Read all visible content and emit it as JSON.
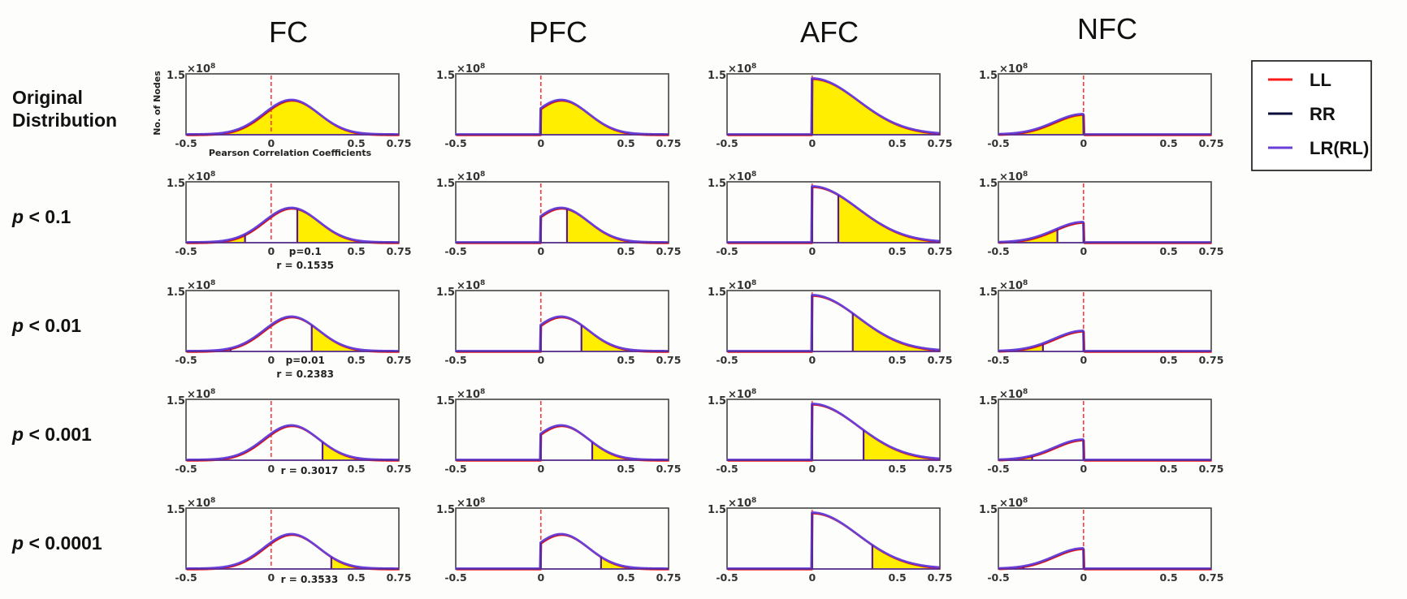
{
  "chart_data": {
    "type": "area",
    "title": "",
    "columns": [
      "FC",
      "PFC",
      "AFC",
      "NFC"
    ],
    "rows": [
      {
        "label_italic": "",
        "label": "Original\nDistribution",
        "p": null
      },
      {
        "label_italic": "p",
        "label": " < 0.1",
        "p": 0.1
      },
      {
        "label_italic": "p",
        "label": " < 0.01",
        "p": 0.01
      },
      {
        "label_italic": "p",
        "label": " < 0.001",
        "p": 0.001
      },
      {
        "label_italic": "p",
        "label": " < 0.0001",
        "p": 0.0001
      }
    ],
    "xlabel": "Pearson Correlation Coefficients",
    "ylabel": "No. of Nodes",
    "xlim": [
      -0.5,
      0.75
    ],
    "ylim": [
      0,
      150000000.0
    ],
    "xticks": [
      "-0.5",
      "0",
      "0.5",
      "0.75"
    ],
    "ytick_label": "1.5",
    "y_multiplier": "×10",
    "y_multiplier_exp": "8",
    "zero_line": {
      "x": 0,
      "style": "dashed",
      "color": "#ff3030"
    },
    "distribution": {
      "family": "gaussian",
      "mean": 0.12,
      "sd": 0.16,
      "peak": 85000000.0
    },
    "afc_distribution": {
      "peak_at_zero": 138000000.0
    },
    "nfc_distribution": {
      "value_at_zero": 50000000.0
    },
    "thresholds": [
      {
        "p": 0.1,
        "r": 0.1535,
        "annotation_p": "p=0.1",
        "annotation_r": "r = 0.1535",
        "neg_r": -0.1535
      },
      {
        "p": 0.01,
        "r": 0.2383,
        "annotation_p": "p=0.01",
        "annotation_r": "r = 0.2383",
        "neg_r": -0.2383
      },
      {
        "p": 0.001,
        "r": 0.3017,
        "annotation_p": "",
        "annotation_r": "r = 0.3017",
        "neg_r": -0.3017
      },
      {
        "p": 0.0001,
        "r": 0.3533,
        "annotation_p": "",
        "annotation_r": "r = 0.3533",
        "neg_r": -0.3533
      }
    ],
    "series": [
      {
        "name": "LL",
        "color": "#ff1a1a"
      },
      {
        "name": "RR",
        "color": "#0a0a3a"
      },
      {
        "name": "LR(RL)",
        "color": "#6a3fd8"
      }
    ],
    "fill_color": "#ffee00",
    "legend": "right"
  }
}
